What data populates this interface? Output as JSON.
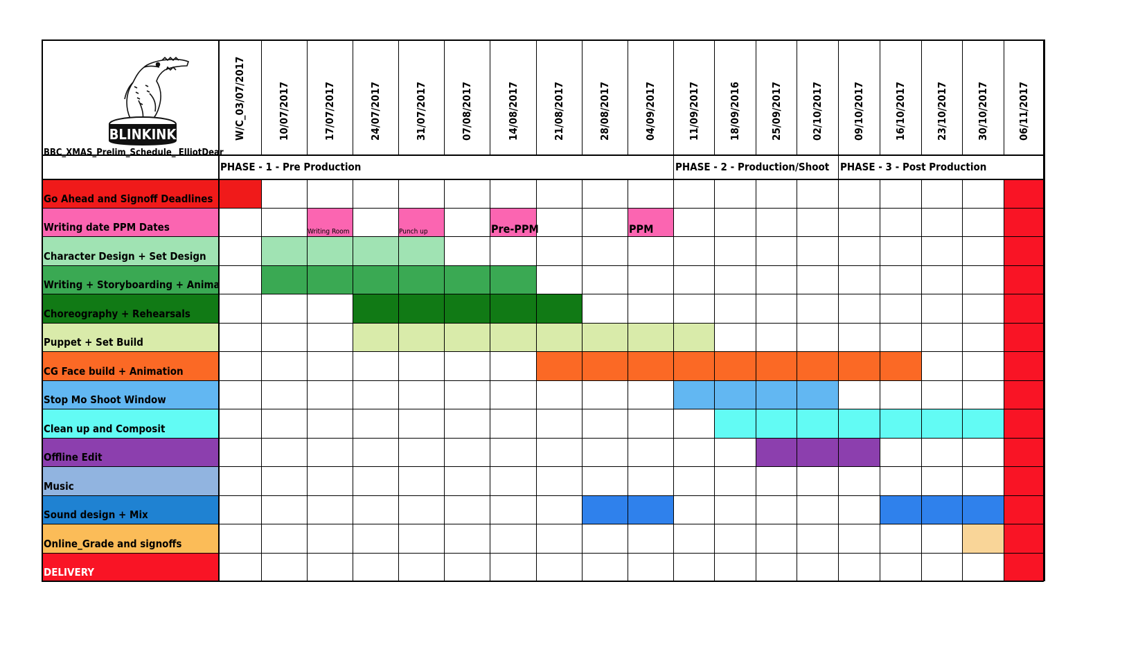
{
  "document": {
    "title": "BBC_XMAS_Prelim_Schedule_ ElliotDear",
    "logo_text": "BLINKINK"
  },
  "weeks": [
    "W/C_03/07/2017",
    "10/07/2017",
    "17/07/2017",
    "24/07/2017",
    "31/07/2017",
    "07/08/2017",
    "14/08/2017",
    "21/08/2017",
    "28/08/2017",
    "04/09/2017",
    "11/09/2017",
    "18/09/2016",
    "25/09/2017",
    "02/10/2017",
    "09/10/2017",
    "16/10/2017",
    "23/10/2017",
    "30/10/2017",
    "06/11/2017"
  ],
  "phases": [
    {
      "label": "PHASE - 1 - Pre Production",
      "start": 0
    },
    {
      "label": "PHASE - 2 - Production/Shoot",
      "start": 10
    },
    {
      "label": "PHASE - 3 - Post Production",
      "start": 14
    }
  ],
  "tasks": [
    {
      "label": "Go Ahead and Signoff Deadlines",
      "color": "#f01a1a",
      "text_color": "#000000",
      "bars": [
        {
          "start": 0,
          "end": 0,
          "color": "#f01a1a"
        }
      ]
    },
    {
      "label": "Writing date PPM Dates",
      "color": "#fb65b1",
      "text_color": "#000000",
      "bars": [
        {
          "start": 2,
          "end": 2,
          "color": "#fb65b1",
          "note": "Writing Room",
          "note_size": "small"
        },
        {
          "start": 4,
          "end": 4,
          "color": "#fb65b1",
          "note": "Punch up",
          "note_size": "small"
        },
        {
          "start": 6,
          "end": 6,
          "color": "#fb65b1",
          "note": "Pre-PPM",
          "note_size": "large"
        },
        {
          "start": 9,
          "end": 9,
          "color": "#fb65b1",
          "note": "PPM",
          "note_size": "large"
        }
      ]
    },
    {
      "label": "Character Design + Set Design",
      "color": "#a0e3b3",
      "text_color": "#000000",
      "bars": [
        {
          "start": 1,
          "end": 4,
          "color": "#a0e3b3"
        }
      ]
    },
    {
      "label": "Writing + Storyboarding + Animatic",
      "color": "#3aa953",
      "text_color": "#000000",
      "bars": [
        {
          "start": 1,
          "end": 6,
          "color": "#3aa953"
        }
      ]
    },
    {
      "label": "Choreography + Rehearsals",
      "color": "#117a15",
      "text_color": "#000000",
      "bars": [
        {
          "start": 3,
          "end": 7,
          "color": "#117a15"
        }
      ]
    },
    {
      "label": "Puppet + Set Build",
      "color": "#d9ebaa",
      "text_color": "#000000",
      "bars": [
        {
          "start": 3,
          "end": 10,
          "color": "#d9ebaa"
        }
      ]
    },
    {
      "label": "CG Face build + Animation",
      "color": "#fb6925",
      "text_color": "#000000",
      "bars": [
        {
          "start": 7,
          "end": 15,
          "color": "#fb6925"
        }
      ]
    },
    {
      "label": "Stop Mo Shoot Window",
      "color": "#62b7f2",
      "text_color": "#000000",
      "bars": [
        {
          "start": 10,
          "end": 13,
          "color": "#62b7f2"
        }
      ]
    },
    {
      "label": "Clean up and Composit",
      "color": "#62fbf4",
      "text_color": "#000000",
      "bars": [
        {
          "start": 11,
          "end": 17,
          "color": "#62fbf4"
        }
      ]
    },
    {
      "label": "Offline Edit",
      "color": "#8c3fae",
      "text_color": "#000000",
      "bars": [
        {
          "start": 12,
          "end": 14,
          "color": "#8c3fae"
        }
      ]
    },
    {
      "label": "Music",
      "color": "#91b4e0",
      "text_color": "#000000",
      "bars": []
    },
    {
      "label": "Sound design + Mix",
      "color": "#1f82d2",
      "text_color": "#000000",
      "bars": [
        {
          "start": 8,
          "end": 9,
          "color": "#2f81ec"
        },
        {
          "start": 15,
          "end": 17,
          "color": "#2f81ec"
        }
      ]
    },
    {
      "label": "Online_Grade and signoffs",
      "color": "#fbbc58",
      "text_color": "#000000",
      "bars": [
        {
          "start": 17,
          "end": 17,
          "color": "#f9d598"
        }
      ]
    },
    {
      "label": "DELIVERY",
      "color": "#f91425",
      "text_color": "#ffffff",
      "bars": []
    }
  ],
  "delivery_column": {
    "index": 18,
    "color": "#f91425"
  }
}
